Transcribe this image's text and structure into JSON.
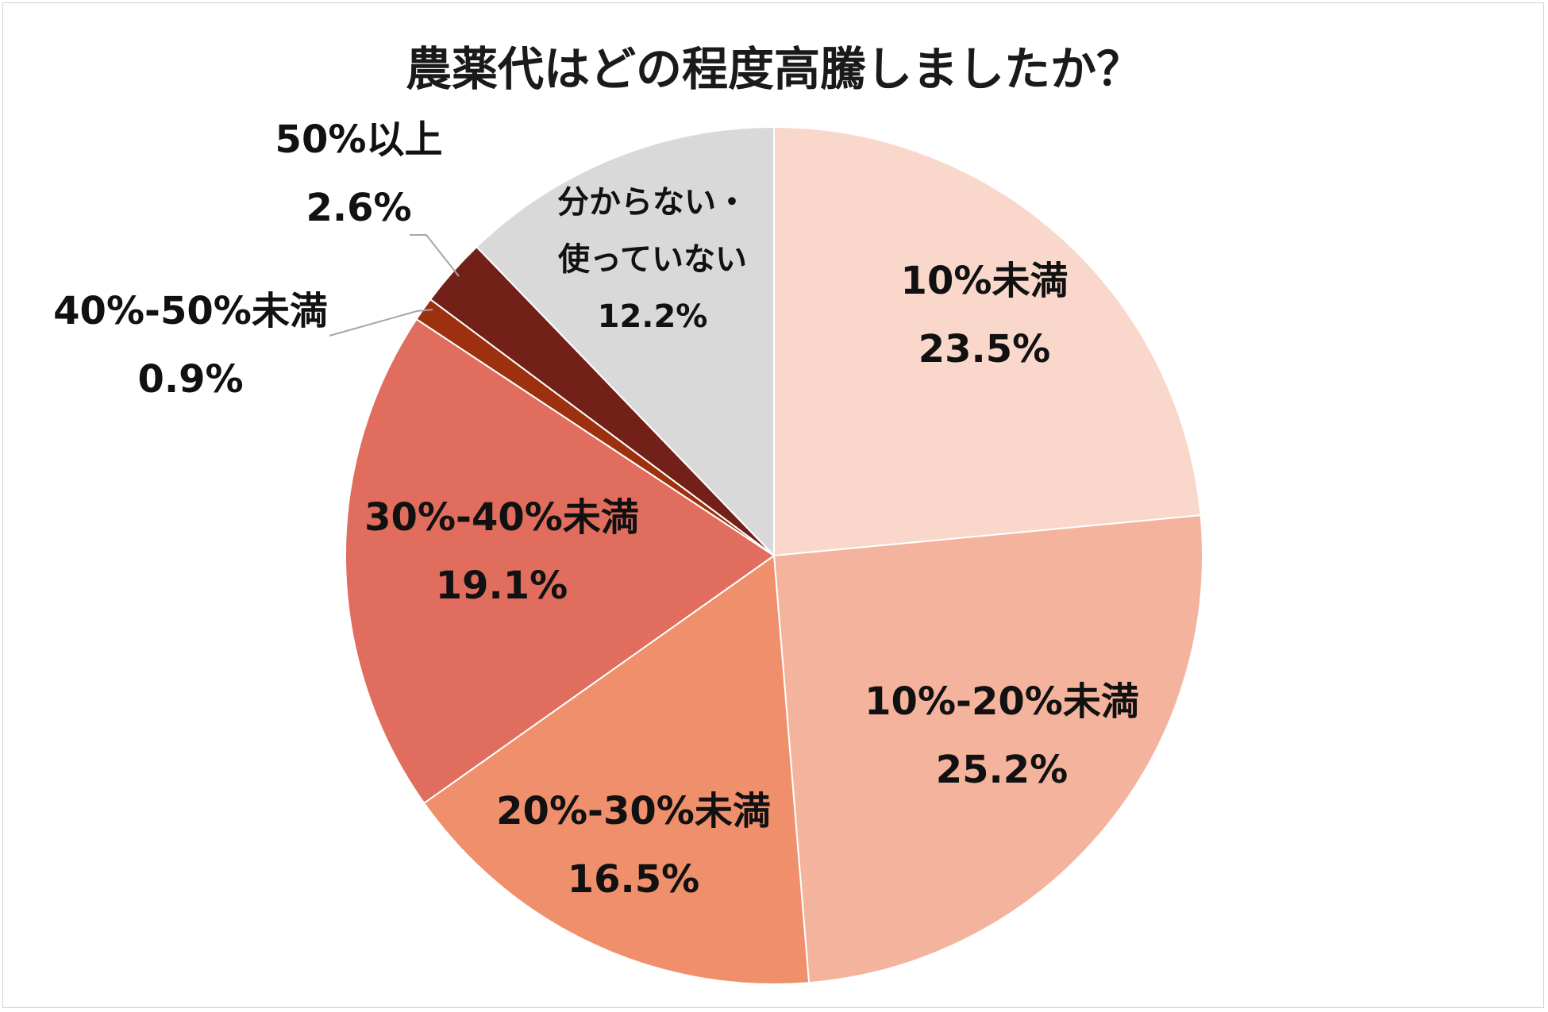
{
  "chart_data": {
    "type": "pie",
    "title": "農薬代はどの程度高騰しましたか？",
    "start_angle_deg": 0,
    "direction": "clockwise",
    "slices": [
      {
        "label": "10%未満",
        "value": 23.5,
        "display": "23.5%",
        "color": "#f9d8cb"
      },
      {
        "label": "10%-20%未満",
        "value": 25.2,
        "display": "25.2%",
        "color": "#f4b39c"
      },
      {
        "label": "20%-30%未満",
        "value": 16.5,
        "display": "16.5%",
        "color": "#ef8f6c"
      },
      {
        "label": "30%-40%未満",
        "value": 19.1,
        "display": "19.1%",
        "color": "#e06d5d"
      },
      {
        "label": "40%-50%未満",
        "value": 0.9,
        "display": "0.9%",
        "color": "#9d300f"
      },
      {
        "label": "50%以上",
        "value": 2.6,
        "display": "2.6%",
        "color": "#722018"
      },
      {
        "label": "分からない・使っていない",
        "label_lines": [
          "分からない・",
          "使っていない"
        ],
        "value": 12.2,
        "display": "12.2%",
        "color": "#d9d9d9"
      }
    ]
  }
}
